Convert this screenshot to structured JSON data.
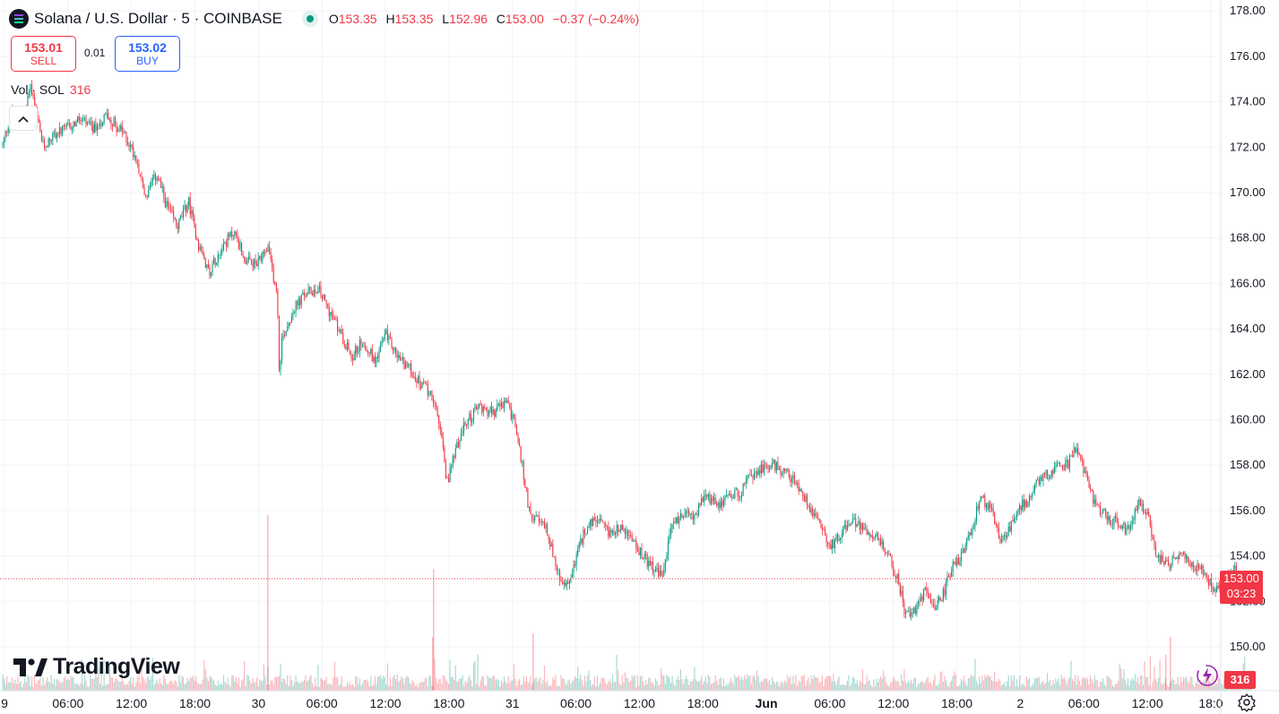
{
  "header": {
    "symbol_title": "Solana / U.S. Dollar · 5 · COINBASE",
    "open_label": "O",
    "open": "153.35",
    "high_label": "H",
    "high": "153.35",
    "low_label": "L",
    "low": "152.96",
    "close_label": "C",
    "close": "153.00",
    "change": "−0.37 (−0.24%)"
  },
  "trade": {
    "sell_price": "153.01",
    "sell_label": "SELL",
    "spread": "0.01",
    "buy_price": "153.02",
    "buy_label": "BUY"
  },
  "volume_legend": {
    "label": "Vol · SOL",
    "value": "316"
  },
  "logo_text": "TradingView",
  "last_price_tag": {
    "price": "153.00",
    "countdown": "03:23"
  },
  "volume_tag": "316",
  "colors": {
    "up": "#089981",
    "down": "#f23645",
    "grid": "#f0f3fa",
    "axis_text": "#131722"
  },
  "icons": {
    "symbol": "solana-logo-icon",
    "market": "market-open-dot-icon",
    "collapse": "chevron-up-icon",
    "flash": "lightning-icon",
    "settings": "gear-icon"
  },
  "chart_data": {
    "type": "candlestick",
    "title": "Solana / U.S. Dollar · 5 · COINBASE",
    "y_ticks": [
      "150.00",
      "152.00",
      "154.00",
      "156.00",
      "158.00",
      "160.00",
      "162.00",
      "164.00",
      "166.00",
      "168.00",
      "170.00",
      "172.00",
      "174.00",
      "176.00",
      "178.00"
    ],
    "x_ticks": [
      "9",
      "06:00",
      "12:00",
      "18:00",
      "30",
      "06:00",
      "12:00",
      "18:00",
      "31",
      "06:00",
      "12:00",
      "18:00",
      "Jun",
      "06:00",
      "12:00",
      "18:00",
      "2",
      "06:00",
      "12:00",
      "18:0"
    ],
    "ylim": [
      149.0,
      178.3
    ],
    "last_price": 153.0,
    "price_path": [
      [
        0,
        172.1
      ],
      [
        0.2,
        173.6
      ],
      [
        0.45,
        173.0
      ],
      [
        0.6,
        174.8
      ],
      [
        0.75,
        173.3
      ],
      [
        0.9,
        172.0
      ],
      [
        1.1,
        172.5
      ],
      [
        1.4,
        172.8
      ],
      [
        1.7,
        173.2
      ],
      [
        2.0,
        172.8
      ],
      [
        2.3,
        173.4
      ],
      [
        2.7,
        172.5
      ],
      [
        2.95,
        171.5
      ],
      [
        3.15,
        169.8
      ],
      [
        3.4,
        170.8
      ],
      [
        3.6,
        169.5
      ],
      [
        3.85,
        168.5
      ],
      [
        4.1,
        169.6
      ],
      [
        4.3,
        167.8
      ],
      [
        4.55,
        166.5
      ],
      [
        4.8,
        167.5
      ],
      [
        5.1,
        168.3
      ],
      [
        5.35,
        167.0
      ],
      [
        5.6,
        166.8
      ],
      [
        5.85,
        167.5
      ],
      [
        6.05,
        165.5
      ],
      [
        6.1,
        162.0
      ],
      [
        6.15,
        163.5
      ],
      [
        6.4,
        164.8
      ],
      [
        6.65,
        165.5
      ],
      [
        6.95,
        165.8
      ],
      [
        7.2,
        164.8
      ],
      [
        7.45,
        163.8
      ],
      [
        7.7,
        162.8
      ],
      [
        7.95,
        163.5
      ],
      [
        8.2,
        162.6
      ],
      [
        8.45,
        163.8
      ],
      [
        8.7,
        162.8
      ],
      [
        8.95,
        162.3
      ],
      [
        9.2,
        161.6
      ],
      [
        9.45,
        161.2
      ],
      [
        9.65,
        159.6
      ],
      [
        9.8,
        157.2
      ],
      [
        9.95,
        158.5
      ],
      [
        10.2,
        159.8
      ],
      [
        10.5,
        160.6
      ],
      [
        10.8,
        160.3
      ],
      [
        11.1,
        160.8
      ],
      [
        11.3,
        159.8
      ],
      [
        11.45,
        158.0
      ],
      [
        11.6,
        156.1
      ],
      [
        11.8,
        155.5
      ],
      [
        12.0,
        155.2
      ],
      [
        12.2,
        153.5
      ],
      [
        12.35,
        152.6
      ],
      [
        12.5,
        152.9
      ],
      [
        12.65,
        154.0
      ],
      [
        12.85,
        155.2
      ],
      [
        13.1,
        155.6
      ],
      [
        13.35,
        155.0
      ],
      [
        13.6,
        155.3
      ],
      [
        13.85,
        154.8
      ],
      [
        14.1,
        154.0
      ],
      [
        14.35,
        153.4
      ],
      [
        14.55,
        153.1
      ],
      [
        14.75,
        155.4
      ],
      [
        15.0,
        155.8
      ],
      [
        15.25,
        155.8
      ],
      [
        15.5,
        156.6
      ],
      [
        15.75,
        156.3
      ],
      [
        16.0,
        156.6
      ],
      [
        16.25,
        156.8
      ],
      [
        16.5,
        157.5
      ],
      [
        16.75,
        157.9
      ],
      [
        17.0,
        158.0
      ],
      [
        17.25,
        157.7
      ],
      [
        17.5,
        157.2
      ],
      [
        17.75,
        156.3
      ],
      [
        18.0,
        155.6
      ],
      [
        18.25,
        154.4
      ],
      [
        18.5,
        155.1
      ],
      [
        18.75,
        155.5
      ],
      [
        19.0,
        155.2
      ],
      [
        19.25,
        154.9
      ],
      [
        19.5,
        154.1
      ],
      [
        19.75,
        152.9
      ],
      [
        19.9,
        151.5
      ],
      [
        20.1,
        151.6
      ],
      [
        20.35,
        152.5
      ],
      [
        20.55,
        151.5
      ],
      [
        20.75,
        152.4
      ],
      [
        20.95,
        153.6
      ],
      [
        21.15,
        154.0
      ],
      [
        21.35,
        155.0
      ],
      [
        21.55,
        156.5
      ],
      [
        21.8,
        156.2
      ],
      [
        22.0,
        154.5
      ],
      [
        22.2,
        155.2
      ],
      [
        22.4,
        156.2
      ],
      [
        22.6,
        156.4
      ],
      [
        22.8,
        157.3
      ],
      [
        23.05,
        157.6
      ],
      [
        23.3,
        158.1
      ],
      [
        23.5,
        158.0
      ],
      [
        23.65,
        158.8
      ],
      [
        23.85,
        157.8
      ],
      [
        24.05,
        156.4
      ],
      [
        24.3,
        155.8
      ],
      [
        24.55,
        155.5
      ],
      [
        24.8,
        155.1
      ],
      [
        25.05,
        156.4
      ],
      [
        25.25,
        155.8
      ],
      [
        25.45,
        154.0
      ],
      [
        25.7,
        153.5
      ],
      [
        25.95,
        154.2
      ],
      [
        26.2,
        153.7
      ],
      [
        26.45,
        153.4
      ],
      [
        26.7,
        152.6
      ],
      [
        26.95,
        153.0
      ],
      [
        27.15,
        153.4
      ],
      [
        27.35,
        152.8
      ],
      [
        27.55,
        153.0
      ]
    ]
  }
}
